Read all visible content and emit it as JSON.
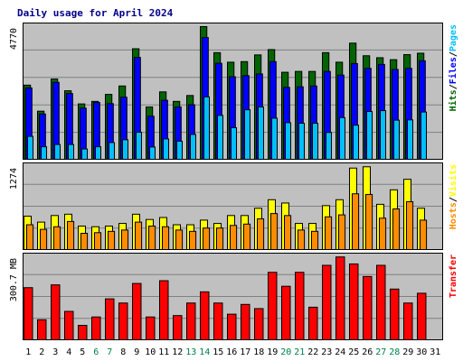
{
  "title": "Daily usage for April 2024",
  "chart_data": [
    {
      "type": "bar",
      "panel": "hits-files-pages",
      "title": "Daily usage for April 2024",
      "ylabel_parts": [
        {
          "text": "Hits",
          "color": "#006400"
        },
        {
          "text": "/",
          "color": "#000000"
        },
        {
          "text": "Files",
          "color": "#0000ff"
        },
        {
          "text": "/",
          "color": "#000000"
        },
        {
          "text": "Pages",
          "color": "#00bfff"
        }
      ],
      "ymax": 4770,
      "ymax_label": "4770",
      "ylim": [
        0,
        4770
      ],
      "grid": true,
      "categories": [
        "1",
        "2",
        "3",
        "4",
        "5",
        "6",
        "7",
        "8",
        "9",
        "10",
        "11",
        "12",
        "13",
        "14",
        "15",
        "16",
        "17",
        "18",
        "19",
        "20",
        "21",
        "22",
        "23",
        "24",
        "25",
        "26",
        "27",
        "28",
        "29",
        "30",
        "31"
      ],
      "series": [
        {
          "name": "Hits",
          "color": "#006400",
          "values": [
            2680,
            1750,
            2900,
            2480,
            2010,
            2100,
            2350,
            2650,
            3980,
            1900,
            2440,
            2100,
            2310,
            4770,
            3840,
            3500,
            3520,
            3760,
            3950,
            3140,
            3170,
            3170,
            3840,
            3500,
            4180,
            3730,
            3660,
            3590,
            3770,
            3820,
            0
          ]
        },
        {
          "name": "Files",
          "color": "#0000ff",
          "values": [
            2580,
            1650,
            2780,
            2380,
            1860,
            2060,
            2020,
            2250,
            3670,
            1570,
            2140,
            1900,
            1980,
            4380,
            3460,
            2980,
            3020,
            3080,
            3520,
            2600,
            2620,
            2650,
            3170,
            3040,
            3450,
            3280,
            3420,
            3240,
            3280,
            3550,
            0
          ]
        },
        {
          "name": "Pages",
          "color": "#00bfff",
          "values": [
            850,
            480,
            560,
            560,
            400,
            480,
            630,
            730,
            1000,
            470,
            760,
            680,
            920,
            2260,
            1600,
            1160,
            1800,
            1900,
            1500,
            1340,
            1320,
            1320,
            990,
            1520,
            1250,
            1740,
            1770,
            1430,
            1440,
            1720,
            0
          ]
        }
      ]
    },
    {
      "type": "bar",
      "panel": "hosts-visits",
      "ylabel_parts": [
        {
          "text": "Hosts",
          "color": "#ff8c00"
        },
        {
          "text": "/",
          "color": "#000000"
        },
        {
          "text": "Visits",
          "color": "#ffff00"
        }
      ],
      "ymax": 1274,
      "ymax_label": "1274",
      "ylim": [
        0,
        1274
      ],
      "grid": true,
      "categories": [
        "1",
        "2",
        "3",
        "4",
        "5",
        "6",
        "7",
        "8",
        "9",
        "10",
        "11",
        "12",
        "13",
        "14",
        "15",
        "16",
        "17",
        "18",
        "19",
        "20",
        "21",
        "22",
        "23",
        "24",
        "25",
        "26",
        "27",
        "28",
        "29",
        "30",
        "31"
      ],
      "series": [
        {
          "name": "Visits",
          "color": "#ffff00",
          "values": [
            520,
            430,
            530,
            550,
            370,
            360,
            370,
            410,
            550,
            470,
            500,
            390,
            390,
            460,
            410,
            530,
            530,
            640,
            770,
            720,
            410,
            410,
            680,
            770,
            1250,
            1270,
            700,
            920,
            1080,
            640,
            0
          ]
        },
        {
          "name": "Hosts",
          "color": "#ff8c00",
          "values": [
            390,
            320,
            360,
            440,
            260,
            270,
            290,
            310,
            430,
            370,
            360,
            310,
            290,
            340,
            340,
            380,
            400,
            480,
            560,
            530,
            310,
            290,
            510,
            540,
            860,
            850,
            490,
            630,
            740,
            460,
            0
          ]
        }
      ]
    },
    {
      "type": "bar",
      "panel": "transfer",
      "ylabel_parts": [
        {
          "text": "Transfer",
          "color": "#ff0000"
        }
      ],
      "ymax": 300.7,
      "ymax_label": "300.7 MB",
      "unit": "MB",
      "ylim": [
        0,
        300.7
      ],
      "grid": true,
      "categories": [
        "1",
        "2",
        "3",
        "4",
        "5",
        "6",
        "7",
        "8",
        "9",
        "10",
        "11",
        "12",
        "13",
        "14",
        "15",
        "16",
        "17",
        "18",
        "19",
        "20",
        "21",
        "22",
        "23",
        "24",
        "25",
        "26",
        "27",
        "28",
        "29",
        "30",
        "31"
      ],
      "series": [
        {
          "name": "Transfer",
          "color": "#ff0000",
          "values": [
            190,
            75,
            200,
            105,
            55,
            85,
            150,
            135,
            205,
            85,
            215,
            90,
            135,
            175,
            135,
            95,
            130,
            115,
            245,
            195,
            245,
            120,
            270,
            300,
            275,
            230,
            270,
            185,
            135,
            170,
            0
          ]
        }
      ]
    }
  ],
  "x_labels": [
    {
      "text": "1",
      "weekend": false
    },
    {
      "text": "2",
      "weekend": false
    },
    {
      "text": "3",
      "weekend": false
    },
    {
      "text": "4",
      "weekend": false
    },
    {
      "text": "5",
      "weekend": false
    },
    {
      "text": "6",
      "weekend": true
    },
    {
      "text": "7",
      "weekend": true
    },
    {
      "text": "8",
      "weekend": false
    },
    {
      "text": "9",
      "weekend": false
    },
    {
      "text": "10",
      "weekend": false
    },
    {
      "text": "11",
      "weekend": false
    },
    {
      "text": "12",
      "weekend": false
    },
    {
      "text": "13",
      "weekend": true
    },
    {
      "text": "14",
      "weekend": true
    },
    {
      "text": "15",
      "weekend": false
    },
    {
      "text": "16",
      "weekend": false
    },
    {
      "text": "17",
      "weekend": false
    },
    {
      "text": "18",
      "weekend": false
    },
    {
      "text": "19",
      "weekend": false
    },
    {
      "text": "20",
      "weekend": true
    },
    {
      "text": "21",
      "weekend": true
    },
    {
      "text": "22",
      "weekend": false
    },
    {
      "text": "23",
      "weekend": false
    },
    {
      "text": "24",
      "weekend": false
    },
    {
      "text": "25",
      "weekend": false
    },
    {
      "text": "26",
      "weekend": false
    },
    {
      "text": "27",
      "weekend": true
    },
    {
      "text": "28",
      "weekend": true
    },
    {
      "text": "29",
      "weekend": false
    },
    {
      "text": "30",
      "weekend": false
    },
    {
      "text": "31",
      "weekend": false
    }
  ],
  "colors": {
    "background": "#ffffff",
    "panel": "#c0c0c0",
    "grid": "#808080",
    "title": "#00008b",
    "weekday_label": "#000000",
    "weekend_label": "#00804a"
  }
}
